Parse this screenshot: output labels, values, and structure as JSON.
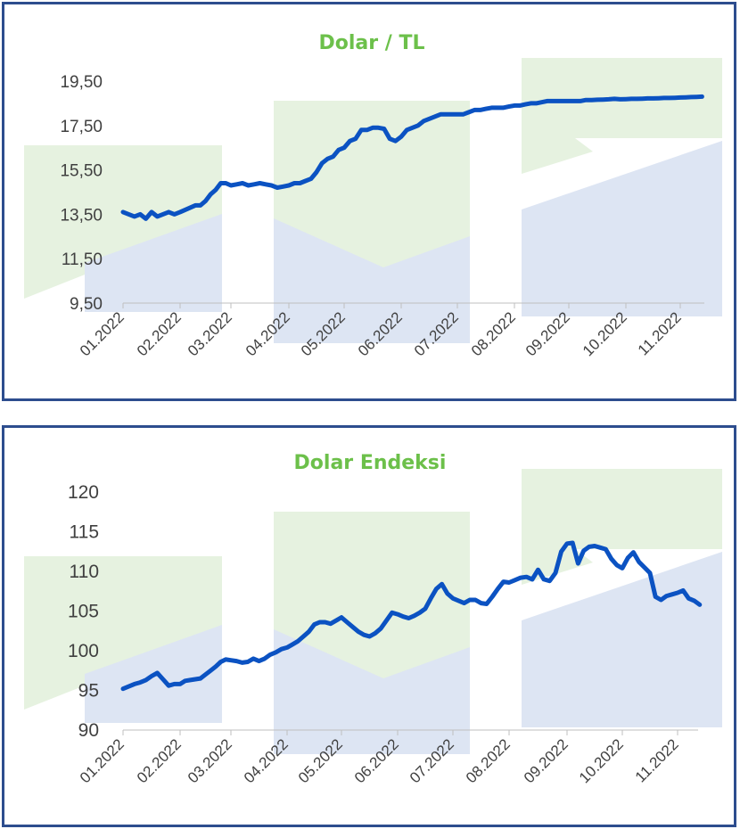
{
  "colors": {
    "border": "#2d4d8e",
    "title": "#6cc04a",
    "line": "#0b52c2",
    "watermark_green": "#e6f2e0",
    "watermark_blue": "#dde5f3",
    "axis_text": "#404040",
    "axis_line": "#bfbfbf"
  },
  "chart_data": [
    {
      "type": "line",
      "title": "Dolar / TL",
      "xlabel": "",
      "ylabel": "",
      "x_tick_labels": [
        "01.2022",
        "02.2022",
        "03.2022",
        "04.2022",
        "05.2022",
        "06.2022",
        "07.2022",
        "08.2022",
        "09.2022",
        "10.2022",
        "11.2022"
      ],
      "y_tick_labels": [
        "9,50",
        "11,50",
        "13,50",
        "15,50",
        "17,50",
        "19,50"
      ],
      "ylim": [
        9.5,
        19.5
      ],
      "grid": false,
      "legend": "none",
      "series": [
        {
          "x": [
            0,
            0.1,
            0.2,
            0.3,
            0.4,
            0.5,
            0.6,
            0.7,
            0.8,
            0.9,
            1.0,
            1.1,
            1.2,
            1.3,
            1.4,
            1.5,
            1.6,
            1.7,
            1.8,
            1.9,
            2.0,
            2.1,
            2.2,
            2.3,
            2.4,
            2.5,
            2.6,
            2.7,
            2.8,
            2.9,
            3.0,
            3.1,
            3.2,
            3.3,
            3.4,
            3.5,
            3.6,
            3.7,
            3.8,
            3.9,
            4.0,
            4.1,
            4.2,
            4.3,
            4.4,
            4.5,
            4.6,
            4.7,
            4.8,
            4.9,
            5.0,
            5.1,
            5.2,
            5.3,
            5.4,
            5.5,
            5.6,
            5.7,
            5.8,
            5.9,
            6.0,
            6.1,
            6.2,
            6.3,
            6.4,
            6.5,
            6.6,
            6.7,
            6.8,
            6.9,
            7.0,
            7.1,
            7.2,
            7.3,
            7.4,
            7.5,
            7.6,
            7.7,
            7.8,
            7.9,
            8.0,
            8.1,
            8.2,
            8.3,
            8.4,
            8.5,
            8.6,
            8.7,
            8.8,
            8.9,
            9.0,
            9.1,
            9.2,
            9.3,
            9.4,
            9.5,
            9.6,
            9.7,
            9.8,
            9.9,
            10.0,
            10.1,
            10.2,
            10.3,
            10.4
          ],
          "values": [
            13.6,
            13.5,
            13.4,
            13.5,
            13.3,
            13.6,
            13.4,
            13.5,
            13.6,
            13.5,
            13.6,
            13.7,
            13.8,
            13.9,
            13.9,
            14.1,
            14.4,
            14.6,
            14.9,
            14.9,
            14.8,
            14.85,
            14.9,
            14.8,
            14.85,
            14.9,
            14.85,
            14.8,
            14.7,
            14.75,
            14.8,
            14.9,
            14.9,
            15.0,
            15.1,
            15.4,
            15.8,
            16.0,
            16.1,
            16.4,
            16.5,
            16.8,
            16.9,
            17.3,
            17.3,
            17.4,
            17.4,
            17.35,
            16.9,
            16.8,
            17.0,
            17.3,
            17.4,
            17.5,
            17.7,
            17.8,
            17.9,
            18.0,
            18.0,
            18.0,
            18.0,
            18.0,
            18.1,
            18.2,
            18.2,
            18.25,
            18.3,
            18.3,
            18.3,
            18.35,
            18.4,
            18.4,
            18.45,
            18.5,
            18.5,
            18.55,
            18.6,
            18.6,
            18.6,
            18.6,
            18.6,
            18.6,
            18.6,
            18.65,
            18.65,
            18.66,
            18.67,
            18.68,
            18.7,
            18.68,
            18.69,
            18.7,
            18.7,
            18.71,
            18.72,
            18.72,
            18.73,
            18.74,
            18.74,
            18.75,
            18.76,
            18.77,
            18.78,
            18.79,
            18.8
          ]
        }
      ]
    },
    {
      "type": "line",
      "title": "Dolar Endeksi",
      "xlabel": "",
      "ylabel": "",
      "x_tick_labels": [
        "01.2022",
        "02.2022",
        "03.2022",
        "04.2022",
        "05.2022",
        "06.2022",
        "07.2022",
        "08.2022",
        "09.2022",
        "10.2022",
        "11.2022"
      ],
      "y_tick_labels": [
        "90",
        "95",
        "100",
        "105",
        "110",
        "115",
        "120"
      ],
      "ylim": [
        90,
        120
      ],
      "grid": false,
      "legend": "none",
      "series": [
        {
          "x": [
            0,
            0.1,
            0.2,
            0.3,
            0.4,
            0.5,
            0.6,
            0.7,
            0.8,
            0.9,
            1.0,
            1.1,
            1.2,
            1.3,
            1.4,
            1.5,
            1.6,
            1.7,
            1.8,
            1.9,
            2.0,
            2.1,
            2.2,
            2.3,
            2.4,
            2.5,
            2.6,
            2.7,
            2.8,
            2.9,
            3.0,
            3.1,
            3.2,
            3.3,
            3.4,
            3.5,
            3.6,
            3.7,
            3.8,
            3.9,
            4.0,
            4.1,
            4.2,
            4.3,
            4.4,
            4.5,
            4.6,
            4.7,
            4.8,
            4.9,
            5.0,
            5.1,
            5.2,
            5.3,
            5.4,
            5.5,
            5.6,
            5.7,
            5.8,
            5.9,
            6.0,
            6.1,
            6.2,
            6.3,
            6.4,
            6.5,
            6.6,
            6.7,
            6.8,
            6.9,
            7.0,
            7.1,
            7.2,
            7.3,
            7.4,
            7.5,
            7.6,
            7.7,
            7.8,
            7.9,
            8.0,
            8.1,
            8.2,
            8.3,
            8.4,
            8.5,
            8.6,
            8.7,
            8.8,
            8.9,
            9.0,
            9.1,
            9.2,
            9.3,
            9.4,
            9.5,
            9.6,
            9.7,
            9.8,
            9.9,
            10.0,
            10.1,
            10.2,
            10.3,
            10.4
          ],
          "values": [
            95.2,
            95.5,
            95.8,
            96.0,
            96.3,
            96.8,
            97.2,
            96.4,
            95.6,
            95.8,
            95.8,
            96.2,
            96.3,
            96.4,
            96.5,
            97.0,
            97.5,
            98.0,
            98.6,
            98.9,
            98.8,
            98.7,
            98.5,
            98.6,
            99.0,
            98.7,
            99.0,
            99.5,
            99.8,
            100.2,
            100.4,
            100.8,
            101.2,
            101.8,
            102.4,
            103.3,
            103.6,
            103.6,
            103.4,
            103.8,
            104.2,
            103.6,
            103.0,
            102.4,
            102.0,
            101.8,
            102.2,
            102.8,
            103.8,
            104.8,
            104.6,
            104.3,
            104.1,
            104.4,
            104.8,
            105.3,
            106.6,
            107.8,
            108.4,
            107.2,
            106.6,
            106.3,
            106.0,
            106.4,
            106.4,
            106.0,
            105.9,
            106.8,
            107.8,
            108.7,
            108.6,
            108.9,
            109.2,
            109.3,
            109.0,
            110.2,
            109.0,
            108.8,
            109.8,
            112.5,
            113.5,
            113.6,
            111.0,
            112.6,
            113.1,
            113.2,
            113.0,
            112.8,
            111.6,
            110.8,
            110.4,
            111.7,
            112.4,
            111.2,
            110.5,
            109.8,
            106.8,
            106.4,
            106.9,
            107.1,
            107.3,
            107.6,
            106.6,
            106.3,
            105.8
          ]
        }
      ]
    }
  ]
}
